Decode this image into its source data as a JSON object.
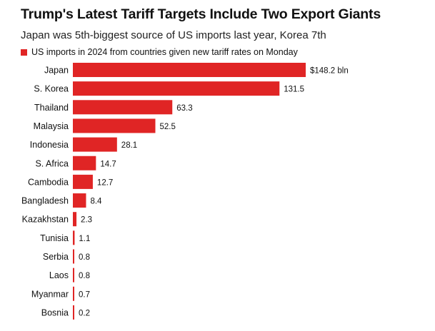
{
  "chart_data": {
    "type": "bar",
    "orientation": "horizontal",
    "title": "Trump's Latest Tariff Targets Include Two Export Giants",
    "subtitle": "Japan was 5th-biggest source of US imports last year, Korea 7th",
    "legend": "US imports in 2024 from countries given new tariff rates on Monday",
    "categories": [
      "Japan",
      "S. Korea",
      "Thailand",
      "Malaysia",
      "Indonesia",
      "S. Africa",
      "Cambodia",
      "Bangladesh",
      "Kazakhstan",
      "Tunisia",
      "Serbia",
      "Laos",
      "Myanmar",
      "Bosnia"
    ],
    "values": [
      148.2,
      131.5,
      63.3,
      52.5,
      28.1,
      14.7,
      12.7,
      8.4,
      2.3,
      1.1,
      0.8,
      0.8,
      0.7,
      0.2
    ],
    "value_labels": [
      "$148.2 bln",
      "131.5",
      "63.3",
      "52.5",
      "28.1",
      "14.7",
      "12.7",
      "8.4",
      "2.3",
      "1.1",
      "0.8",
      "0.8",
      "0.7",
      "0.2"
    ],
    "xlim": [
      0,
      148.2
    ],
    "grid": false,
    "legend_position": "top-left",
    "bar_color": "#e02525"
  }
}
